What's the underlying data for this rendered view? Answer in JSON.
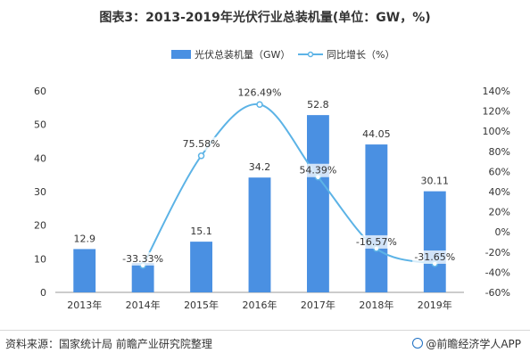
{
  "chart_data": {
    "type": "bar+line",
    "title": "图表3：2013-2019年光伏行业总装机量(单位：GW，%)",
    "categories": [
      "2013年",
      "2014年",
      "2015年",
      "2016年",
      "2017年",
      "2018年",
      "2019年"
    ],
    "series": [
      {
        "name": "光伏总装机量（GW）",
        "type": "bar",
        "axis": "left",
        "color": "#4a90e2",
        "values": [
          12.9,
          8.73,
          15.1,
          34.2,
          52.8,
          44.05,
          30.11
        ],
        "labels": [
          "12.9",
          "",
          "15.1",
          "34.2",
          "52.8",
          "44.05",
          "30.11"
        ]
      },
      {
        "name": "同比增长（%）",
        "type": "line",
        "axis": "right",
        "color": "#5cb3e6",
        "values": [
          null,
          -33.33,
          75.58,
          126.49,
          54.39,
          -16.57,
          -31.65
        ],
        "labels": [
          "",
          "-33.33%",
          "75.58%",
          "126.49%",
          "54.39%",
          "-16.57%",
          "-31.65%"
        ]
      }
    ],
    "ylim_left": [
      0,
      60
    ],
    "yticks_left": [
      "0",
      "10",
      "20",
      "30",
      "40",
      "50",
      "60"
    ],
    "ylim_right": [
      -60,
      140
    ],
    "yticks_right": [
      "-60%",
      "-40%",
      "-20%",
      "0%",
      "20%",
      "40%",
      "60%",
      "80%",
      "100%",
      "120%",
      "140%"
    ],
    "legend_position": "top-center",
    "grid": false
  },
  "footer": {
    "source": "资料来源：国家统计局 前瞻产业研究院整理",
    "brand": "@前瞻经济学人APP"
  }
}
